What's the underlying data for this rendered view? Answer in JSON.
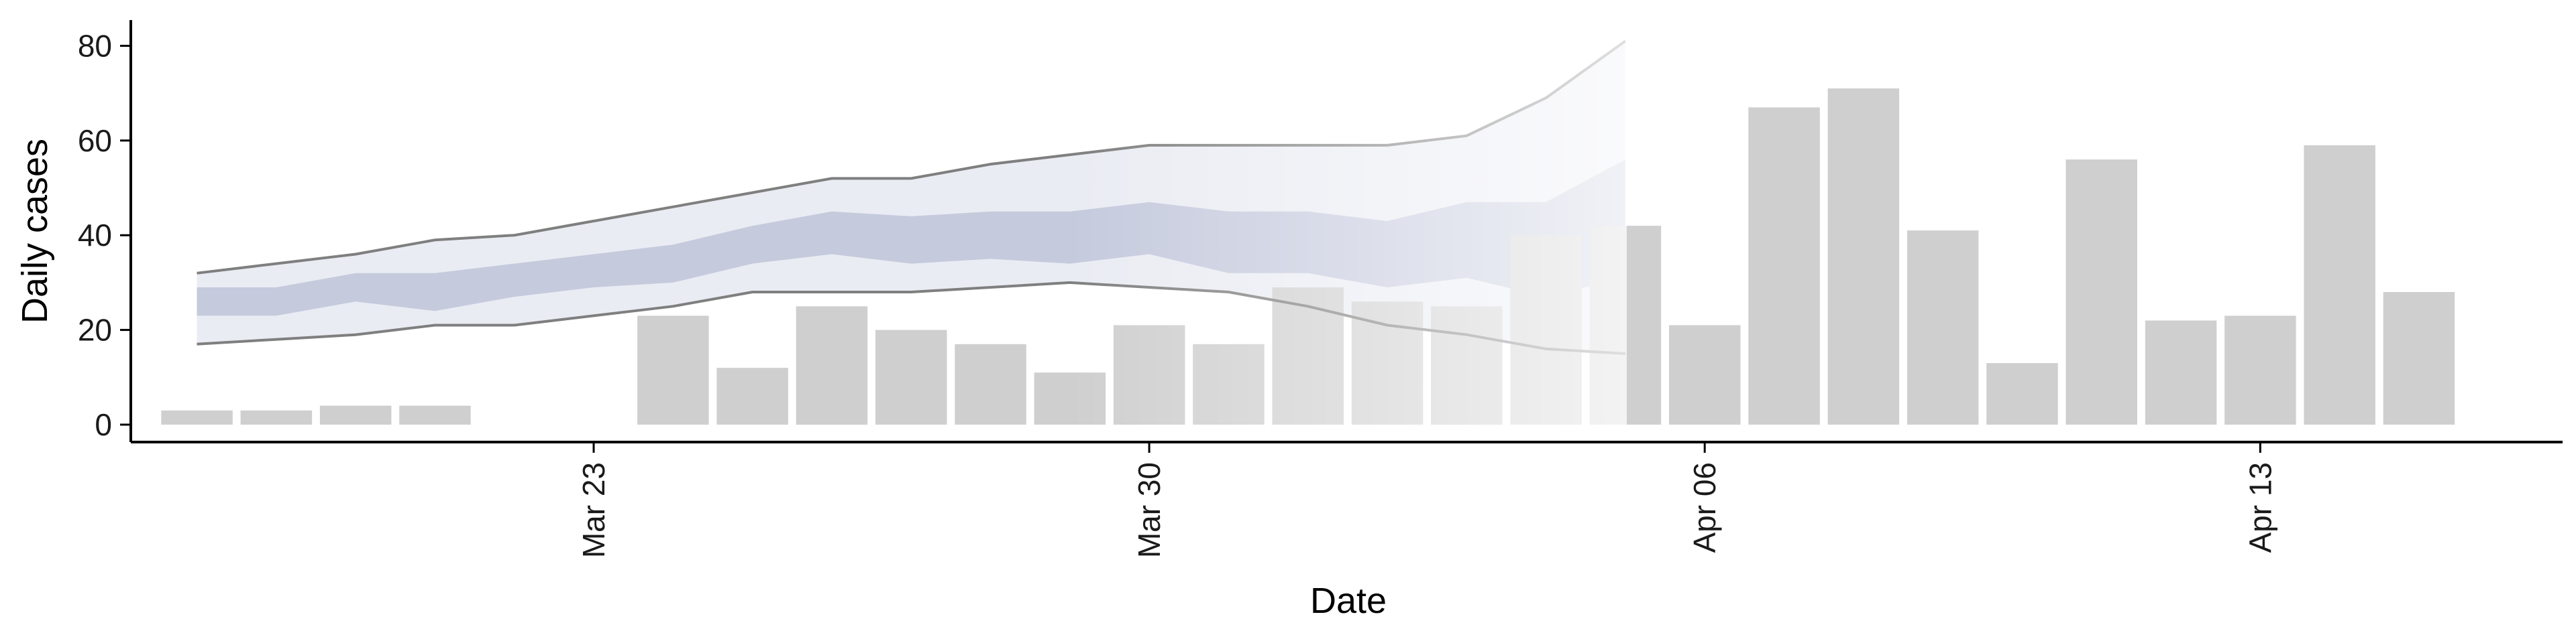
{
  "chart_data": {
    "type": "bar",
    "title": "",
    "xlabel": "Date",
    "ylabel": "Daily cases",
    "ylim": [
      -4,
      85
    ],
    "y_ticks": [
      0,
      20,
      40,
      60,
      80
    ],
    "x_ticks": [
      {
        "date": "2020-03-23",
        "label": "Mar 23"
      },
      {
        "date": "2020-03-30",
        "label": "Mar 30"
      },
      {
        "date": "2020-04-06",
        "label": "Apr 06"
      },
      {
        "date": "2020-04-13",
        "label": "Apr 13"
      }
    ],
    "xlim": [
      "2020-03-17",
      "2020-04-17"
    ],
    "grid": false,
    "colors": {
      "bars": "#cfcfcf",
      "band_outer": "#d9dcea",
      "band_inner": "#b8bfd6",
      "bound_lines": "#7f7f7f"
    },
    "cases": [
      {
        "date": "2020-03-18",
        "value": 3
      },
      {
        "date": "2020-03-19",
        "value": 3
      },
      {
        "date": "2020-03-20",
        "value": 4
      },
      {
        "date": "2020-03-21",
        "value": 4
      },
      {
        "date": "2020-03-24",
        "value": 23
      },
      {
        "date": "2020-03-25",
        "value": 12
      },
      {
        "date": "2020-03-26",
        "value": 25
      },
      {
        "date": "2020-03-27",
        "value": 20
      },
      {
        "date": "2020-03-28",
        "value": 17
      },
      {
        "date": "2020-03-29",
        "value": 11
      },
      {
        "date": "2020-03-30",
        "value": 21
      },
      {
        "date": "2020-03-31",
        "value": 17
      },
      {
        "date": "2020-04-01",
        "value": 29
      },
      {
        "date": "2020-04-02",
        "value": 26
      },
      {
        "date": "2020-04-03",
        "value": 25
      },
      {
        "date": "2020-04-04",
        "value": 40
      },
      {
        "date": "2020-04-05",
        "value": 42
      },
      {
        "date": "2020-04-06",
        "value": 21
      },
      {
        "date": "2020-04-07",
        "value": 67
      },
      {
        "date": "2020-04-08",
        "value": 71
      },
      {
        "date": "2020-04-09",
        "value": 41
      },
      {
        "date": "2020-04-10",
        "value": 13
      },
      {
        "date": "2020-04-11",
        "value": 56
      },
      {
        "date": "2020-04-12",
        "value": 22
      },
      {
        "date": "2020-04-13",
        "value": 23
      },
      {
        "date": "2020-04-14",
        "value": 59
      },
      {
        "date": "2020-04-15",
        "value": 28
      }
    ],
    "estimate_bands": [
      {
        "date": "2020-03-18",
        "lower90": 17,
        "upper90": 32,
        "lower50": 23,
        "upper50": 29
      },
      {
        "date": "2020-03-19",
        "lower90": 18,
        "upper90": 34,
        "lower50": 23,
        "upper50": 29
      },
      {
        "date": "2020-03-20",
        "lower90": 19,
        "upper90": 36,
        "lower50": 26,
        "upper50": 32
      },
      {
        "date": "2020-03-21",
        "lower90": 21,
        "upper90": 39,
        "lower50": 24,
        "upper50": 32
      },
      {
        "date": "2020-03-22",
        "lower90": 21,
        "upper90": 40,
        "lower50": 27,
        "upper50": 34
      },
      {
        "date": "2020-03-23",
        "lower90": 23,
        "upper90": 43,
        "lower50": 29,
        "upper50": 36
      },
      {
        "date": "2020-03-24",
        "lower90": 25,
        "upper90": 46,
        "lower50": 30,
        "upper50": 38
      },
      {
        "date": "2020-03-25",
        "lower90": 28,
        "upper90": 49,
        "lower50": 34,
        "upper50": 42
      },
      {
        "date": "2020-03-26",
        "lower90": 28,
        "upper90": 52,
        "lower50": 36,
        "upper50": 45
      },
      {
        "date": "2020-03-27",
        "lower90": 28,
        "upper90": 52,
        "lower50": 34,
        "upper50": 44
      },
      {
        "date": "2020-03-28",
        "lower90": 29,
        "upper90": 55,
        "lower50": 35,
        "upper50": 45
      },
      {
        "date": "2020-03-29",
        "lower90": 30,
        "upper90": 57,
        "lower50": 34,
        "upper50": 45
      },
      {
        "date": "2020-03-30",
        "lower90": 29,
        "upper90": 59,
        "lower50": 36,
        "upper50": 47
      },
      {
        "date": "2020-03-31",
        "lower90": 28,
        "upper90": 59,
        "lower50": 32,
        "upper50": 45
      },
      {
        "date": "2020-04-01",
        "lower90": 25,
        "upper90": 59,
        "lower50": 32,
        "upper50": 45
      },
      {
        "date": "2020-04-02",
        "lower90": 21,
        "upper90": 59,
        "lower50": 29,
        "upper50": 43
      },
      {
        "date": "2020-04-03",
        "lower90": 19,
        "upper90": 61,
        "lower50": 31,
        "upper50": 47
      },
      {
        "date": "2020-04-04",
        "lower90": 16,
        "upper90": 69,
        "lower50": 27,
        "upper50": 47
      },
      {
        "date": "2020-04-05",
        "lower90": 15,
        "upper90": 81,
        "lower50": 31,
        "upper50": 56
      }
    ]
  }
}
